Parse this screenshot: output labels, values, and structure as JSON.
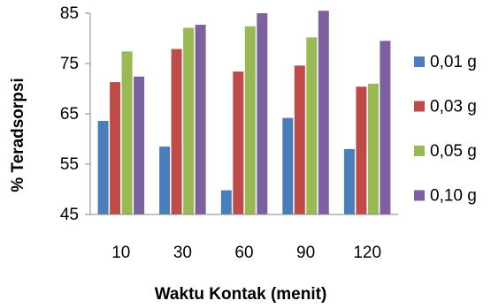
{
  "chart_data": {
    "type": "bar",
    "title": "",
    "xlabel": "Waktu Kontak (menit)",
    "ylabel": "% Teradsorpsi",
    "categories": [
      "10",
      "30",
      "60",
      "90",
      "120"
    ],
    "ylim": [
      45,
      85
    ],
    "yticks": [
      45,
      55,
      65,
      75,
      85
    ],
    "grid": false,
    "legend_position": "right",
    "series": [
      {
        "name": "0,01 g",
        "color": "#4a7ebb",
        "values": [
          63.6,
          58.5,
          49.8,
          64.2,
          58.0
        ]
      },
      {
        "name": "0,03 g",
        "color": "#be4b48",
        "values": [
          71.3,
          77.9,
          73.4,
          74.6,
          70.4
        ]
      },
      {
        "name": "0,05 g",
        "color": "#98b954",
        "values": [
          77.4,
          82.1,
          82.4,
          80.2,
          71.0
        ]
      },
      {
        "name": "0,10 g",
        "color": "#7d60a0",
        "values": [
          72.4,
          82.7,
          85.0,
          85.5,
          79.5
        ]
      }
    ]
  }
}
